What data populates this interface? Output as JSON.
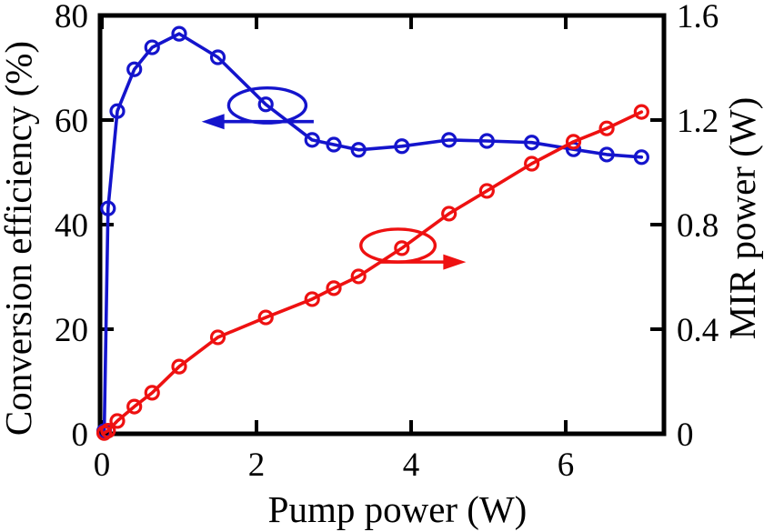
{
  "figure": {
    "description": "Dual-axis line chart of conversion efficiency and MIR power versus pump power",
    "background_color": "#ffffff",
    "frame_color": "#000000"
  },
  "chart_data": {
    "type": "line",
    "title": "",
    "xlabel": "Pump power (W)",
    "ylabel_left": "Conversion efficiency (%)",
    "ylabel_right": "MIR power (W)",
    "x_range": [
      0,
      7.27
    ],
    "x_ticks": [
      0,
      2,
      4,
      6
    ],
    "x_tick_labels": [
      "0",
      "2",
      "4",
      "6"
    ],
    "y_left_range": [
      0,
      80
    ],
    "y_left_ticks": [
      0,
      20,
      40,
      60,
      80
    ],
    "y_left_tick_labels": [
      "0",
      "20",
      "40",
      "60",
      "80"
    ],
    "y_right_range": [
      0,
      1.6
    ],
    "y_right_ticks": [
      0,
      0.4,
      0.8,
      1.2,
      1.6
    ],
    "y_right_tick_labels": [
      "0",
      "0.4",
      "0.8",
      "1.2",
      "1.6"
    ],
    "grid": false,
    "legend_position": "none",
    "x": [
      0.03,
      0.08,
      0.2,
      0.42,
      0.65,
      1.0,
      1.5,
      2.12,
      2.72,
      3.0,
      3.32,
      3.88,
      4.49,
      4.98,
      5.56,
      6.1,
      6.53,
      6.98
    ],
    "series": [
      {
        "name": "Conversion efficiency",
        "axis": "left",
        "color": "#1414CC",
        "marker": "open-circle",
        "values": [
          0.5,
          43.1,
          61.7,
          69.7,
          73.9,
          76.5,
          72.0,
          63.0,
          56.2,
          55.3,
          54.3,
          55.0,
          56.2,
          56.0,
          55.7,
          54.4,
          53.4,
          52.9
        ]
      },
      {
        "name": "MIR power",
        "axis": "right",
        "color": "#EE1111",
        "marker": "open-circle",
        "values": [
          0.003,
          0.012,
          0.049,
          0.104,
          0.157,
          0.257,
          0.369,
          0.445,
          0.515,
          0.557,
          0.602,
          0.71,
          0.842,
          0.929,
          1.033,
          1.117,
          1.168,
          1.231
        ]
      }
    ],
    "annotations": [
      {
        "name": "conversion-efficiency-callout",
        "type": "ellipse-arrow",
        "axis": "left",
        "color": "#1414CC",
        "ellipse": {
          "cx": 2.14,
          "cy": 62.8,
          "rx": 0.5,
          "ry": 3.35
        },
        "arrow": {
          "y": 59.7,
          "x_from": 2.74,
          "x_to": 1.29,
          "direction": "left"
        }
      },
      {
        "name": "mir-power-callout",
        "type": "ellipse-arrow",
        "axis": "right",
        "color": "#EE1111",
        "ellipse": {
          "cx": 3.83,
          "cy": 0.72,
          "rx": 0.48,
          "ry": 0.063
        },
        "arrow": {
          "y": 0.657,
          "x_from": 3.6,
          "x_to": 4.71,
          "direction": "right"
        }
      }
    ]
  }
}
